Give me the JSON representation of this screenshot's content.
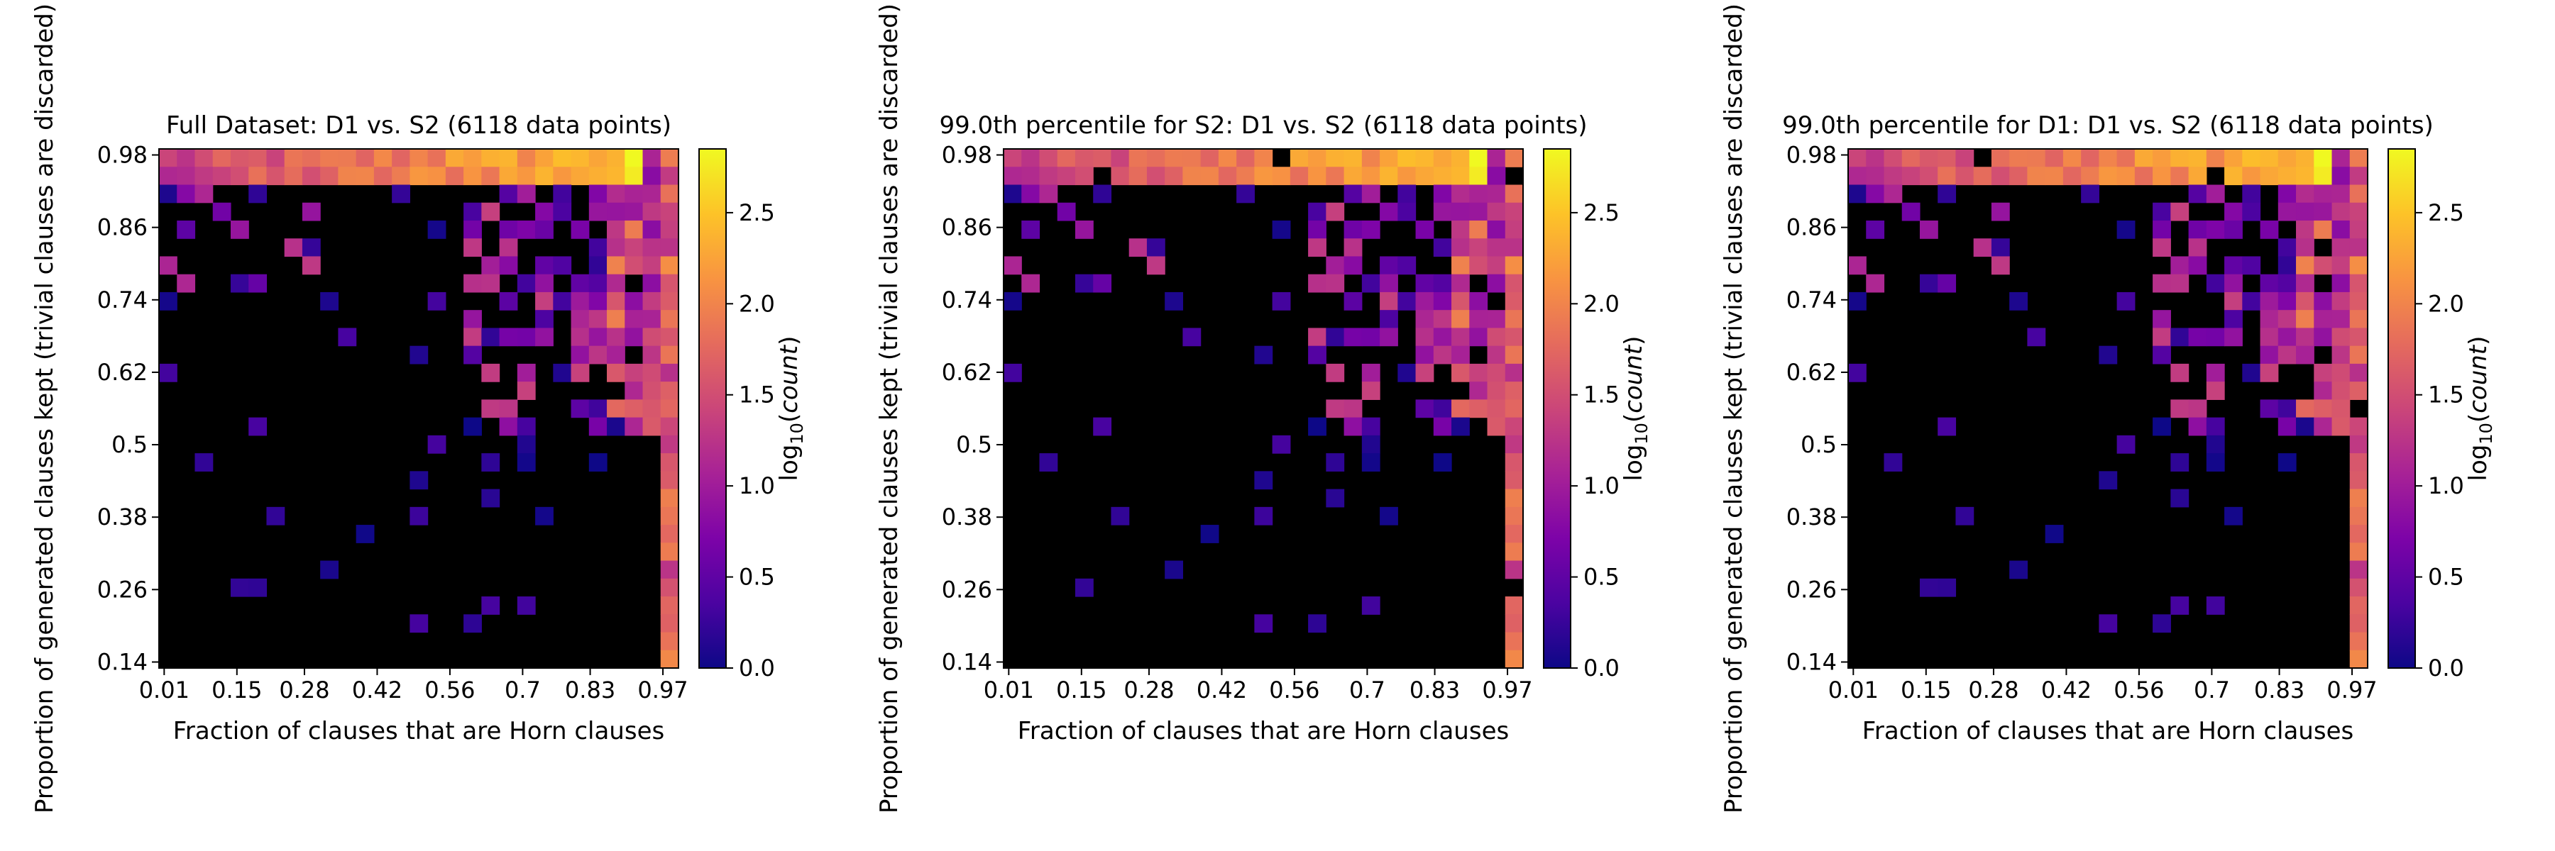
{
  "chart_data": [
    {
      "type": "heatmap",
      "title": "Full Dataset: D1 vs. S2 (6118 data points)",
      "xlabel": "Fraction of clauses that are Horn clauses",
      "ylabel": "Proportion of generated clauses kept (trivial clauses are discarded)",
      "x_ticks": [
        "0.01",
        "0.15",
        "0.28",
        "0.42",
        "0.56",
        "0.7",
        "0.83",
        "0.97"
      ],
      "y_ticks": [
        "0.98",
        "0.86",
        "0.74",
        "0.62",
        "0.5",
        "0.38",
        "0.26",
        "0.14"
      ],
      "xlim": [
        0,
        1
      ],
      "ylim": [
        0.13,
        0.99
      ],
      "colorbar": {
        "label": "log10(count)",
        "label_base": "log",
        "label_sub": "10",
        "label_arg": "count",
        "ticks": [
          "0.0",
          "0.5",
          "1.0",
          "1.5",
          "2.0",
          "2.5"
        ],
        "range": [
          0,
          2.85
        ],
        "colormap": "plasma"
      },
      "bins": [
        29,
        29
      ]
    },
    {
      "type": "heatmap",
      "title": "99.0th percentile for S2: D1 vs. S2 (6118 data points)",
      "xlabel": "Fraction of clauses that are Horn clauses",
      "ylabel": "Proportion of generated clauses kept (trivial clauses are discarded)",
      "x_ticks": [
        "0.01",
        "0.15",
        "0.28",
        "0.42",
        "0.56",
        "0.7",
        "0.83",
        "0.97"
      ],
      "y_ticks": [
        "0.98",
        "0.86",
        "0.74",
        "0.62",
        "0.5",
        "0.38",
        "0.26",
        "0.14"
      ],
      "xlim": [
        0,
        1
      ],
      "ylim": [
        0.13,
        0.99
      ],
      "colorbar": {
        "label": "log10(count)",
        "label_base": "log",
        "label_sub": "10",
        "label_arg": "count",
        "ticks": [
          "0.0",
          "0.5",
          "1.0",
          "1.5",
          "2.0",
          "2.5"
        ],
        "range": [
          0,
          2.85
        ],
        "colormap": "plasma"
      },
      "bins": [
        29,
        29
      ]
    },
    {
      "type": "heatmap",
      "title": "99.0th percentile for D1: D1 vs. S2 (6118 data points)",
      "xlabel": "Fraction of clauses that are Horn clauses",
      "ylabel": "Proportion of generated clauses kept (trivial clauses are discarded)",
      "x_ticks": [
        "0.01",
        "0.15",
        "0.28",
        "0.42",
        "0.56",
        "0.7",
        "0.83",
        "0.97"
      ],
      "y_ticks": [
        "0.98",
        "0.86",
        "0.74",
        "0.62",
        "0.5",
        "0.38",
        "0.26",
        "0.14"
      ],
      "xlim": [
        0,
        1
      ],
      "ylim": [
        0.13,
        0.99
      ],
      "colorbar": {
        "label": "log10(count)",
        "label_base": "log",
        "label_sub": "10",
        "label_arg": "count",
        "ticks": [
          "0.0",
          "0.5",
          "1.0",
          "1.5",
          "2.0",
          "2.5"
        ],
        "range": [
          0,
          2.85
        ],
        "colormap": "plasma"
      },
      "bins": [
        29,
        29
      ]
    }
  ]
}
